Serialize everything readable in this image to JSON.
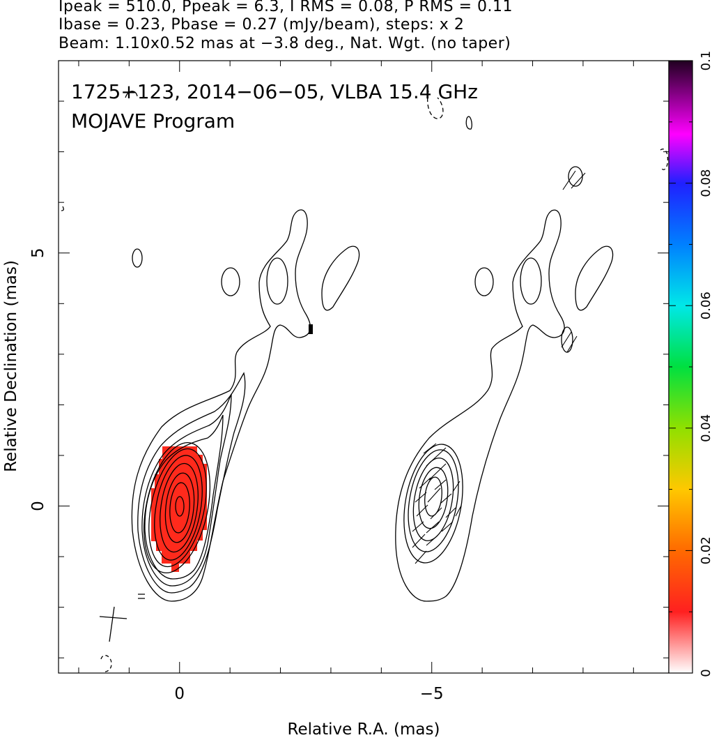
{
  "header": {
    "line1": "Ipeak = 510.0, Ppeak = 6.3, I RMS = 0.08, P RMS = 0.11",
    "line2": "Ibase = 0.23, Pbase = 0.27 (mJy/beam), steps: x 2",
    "line3": "Beam: 1.10x0.52 mas at −3.8 deg., Nat. Wgt. (no taper)"
  },
  "plot": {
    "title": "1725+123, 2014−06−05, VLBA 15.4 GHz",
    "subtitle": "MOJAVE Program"
  },
  "chart_data": {
    "type": "heatmap",
    "title": "1725+123, 2014−06−05, VLBA 15.4 GHz",
    "subtitle": "MOJAVE Program",
    "xlabel": "Relative R.A. (mas)",
    "ylabel": "Relative Declination (mas)",
    "xlim": [
      2.4,
      -9.7
    ],
    "ylim": [
      -3.3,
      8.8
    ],
    "x_ticks": [
      0,
      -5
    ],
    "x_tick_labels": [
      "0",
      "−5"
    ],
    "y_ticks": [
      0,
      5
    ],
    "y_tick_labels": [
      "0",
      "5"
    ],
    "colorbar": {
      "range": [
        0,
        0.1
      ],
      "ticks": [
        0,
        0.02,
        0.04,
        0.06,
        0.08,
        0.1
      ],
      "tick_labels": [
        "0",
        "0.02",
        "0.04",
        "0.06",
        "0.08",
        "0.1"
      ],
      "colormap": [
        "#ffffff",
        "#ff0000",
        "#ff8000",
        "#ffff00",
        "#00ff00",
        "#00ffff",
        "#0000ff",
        "#ff00ff",
        "#000000"
      ]
    },
    "panels": [
      {
        "name": "Stokes I contours with fractional polarization color",
        "x_center": 0
      },
      {
        "name": "Polarized intensity contours with EVPA vectors",
        "x_center": -5
      }
    ],
    "peak_position": [
      0,
      0
    ],
    "fill_color": "#ff2a1c"
  }
}
